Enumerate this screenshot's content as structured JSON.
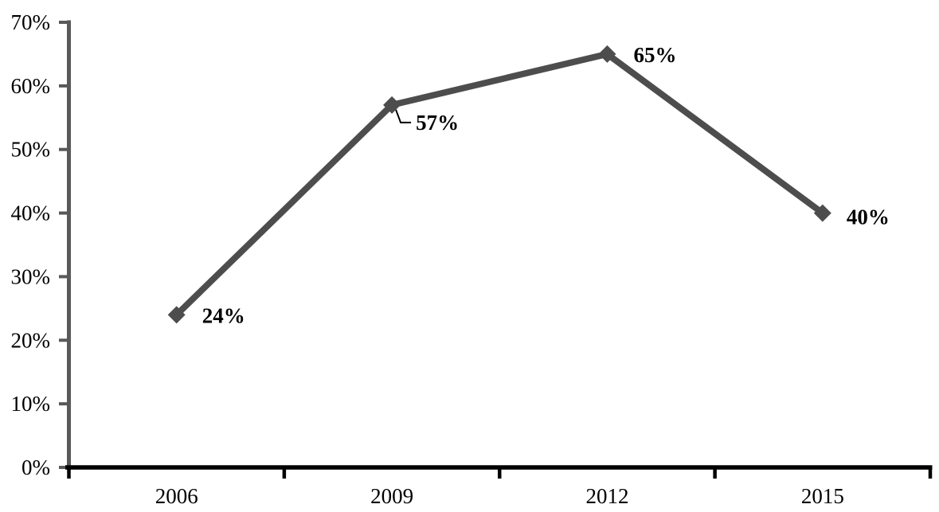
{
  "chart_data": {
    "type": "line",
    "title": "",
    "categories": [
      "2006",
      "2009",
      "2012",
      "2015"
    ],
    "series": [
      {
        "name": "percentage-series",
        "values": [
          24,
          57,
          65,
          40
        ],
        "point_labels": [
          "24%",
          "57%",
          "65%",
          "40%"
        ],
        "color": "#4d4d4d",
        "marker": "diamond"
      }
    ],
    "xlabel": "",
    "ylabel": "",
    "ylim": [
      0,
      70
    ],
    "yticks": [
      0,
      10,
      20,
      30,
      40,
      50,
      60,
      70
    ],
    "ytick_labels": [
      "0%",
      "10%",
      "20%",
      "30%",
      "40%",
      "50%",
      "60%",
      "70%"
    ],
    "grid": false,
    "legend": "none",
    "colors": {
      "y_axis": "#595959",
      "x_axis": "#000000",
      "text": "#000000",
      "leader_line": "#000000",
      "background": "#ffffff"
    }
  }
}
